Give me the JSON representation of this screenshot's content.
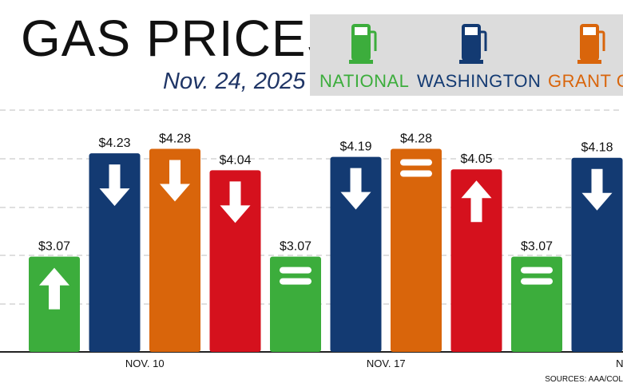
{
  "header": {
    "title": "GAS PRICES",
    "date": "Nov. 24, 2025"
  },
  "legend": [
    {
      "label": "NATIONAL",
      "color": "#3cad3c",
      "icon": "gas-pump-icon"
    },
    {
      "label": "WASHINGTON",
      "color": "#133a72",
      "icon": "gas-pump-icon"
    },
    {
      "label": "GRANT CO",
      "color": "#d9650b",
      "icon": "gas-pump-icon"
    }
  ],
  "colors": {
    "national": "#3cad3c",
    "washington": "#133a72",
    "grant": "#d9650b",
    "fourth": "#d5111d",
    "grid": "#cccccc",
    "axis": "#222222"
  },
  "chart_data": {
    "type": "bar",
    "title": "GAS PRICES",
    "subtitle": "Nov. 24, 2025",
    "categories": [
      "NOV. 10",
      "NOV. 17",
      "NOV"
    ],
    "series": [
      {
        "name": "NATIONAL",
        "values": [
          3.07,
          3.07,
          3.07
        ],
        "trend": [
          "up",
          "same",
          "same"
        ]
      },
      {
        "name": "WASHINGTON",
        "values": [
          4.23,
          4.19,
          4.18
        ],
        "trend": [
          "down",
          "down",
          "down"
        ]
      },
      {
        "name": "GRANT CO",
        "values": [
          4.28,
          4.28,
          null
        ],
        "trend": [
          "down",
          "same",
          null
        ]
      },
      {
        "name": "",
        "values": [
          4.04,
          4.05,
          null
        ],
        "trend": [
          "down",
          "up",
          null
        ]
      }
    ],
    "value_labels": [
      [
        "$3.07",
        "$4.23",
        "$4.28",
        "$4.04"
      ],
      [
        "$3.07",
        "$4.19",
        "$4.28",
        "$4.05"
      ],
      [
        "$3.07",
        "$4.18"
      ]
    ],
    "ylim": [
      2.0,
      4.5
    ],
    "grid": true,
    "legend_position": "top-right"
  },
  "source": "SOURCES: AAA/COL"
}
